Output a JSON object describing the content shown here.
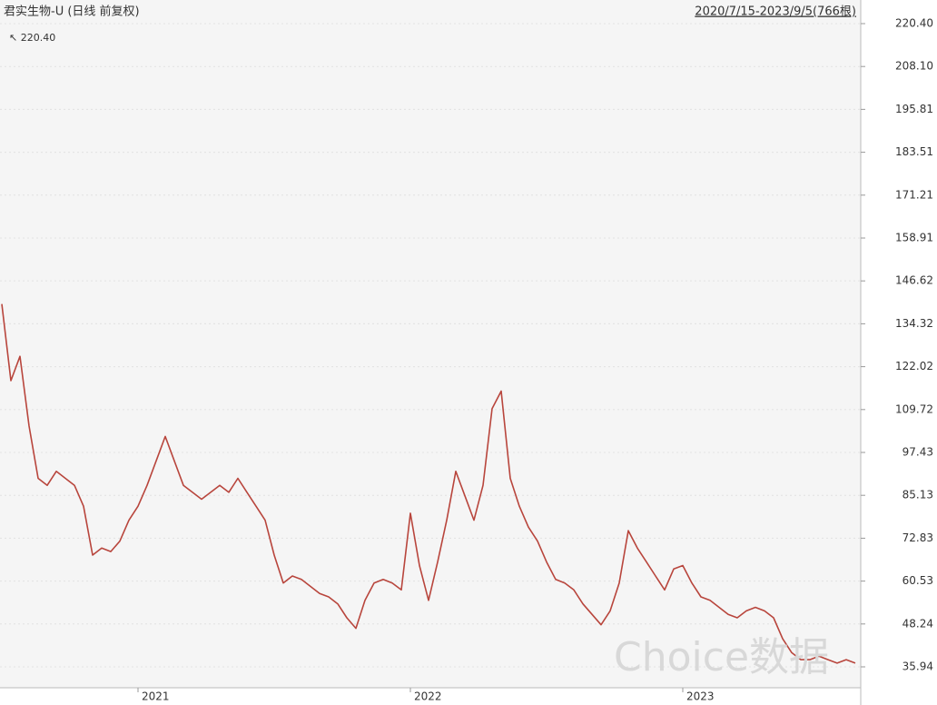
{
  "chart_data": {
    "type": "line",
    "title": "君实生物-U (日线 前复权)",
    "subtitle": "2020/7/15-2023/9/5(766根)",
    "annotation": "↖ 220.40",
    "watermark": "Choice数据",
    "categories": [
      null,
      null,
      null,
      null,
      null,
      null,
      null,
      null,
      null,
      null,
      null,
      null,
      null,
      null,
      null,
      "2021",
      null,
      null,
      null,
      null,
      null,
      null,
      null,
      null,
      null,
      null,
      null,
      null,
      null,
      null,
      null,
      null,
      null,
      null,
      null,
      null,
      null,
      null,
      null,
      null,
      null,
      null,
      null,
      null,
      null,
      "2022",
      null,
      null,
      null,
      null,
      null,
      null,
      null,
      null,
      null,
      null,
      null,
      null,
      null,
      null,
      null,
      null,
      null,
      null,
      null,
      null,
      null,
      null,
      null,
      null,
      null,
      null,
      null,
      null,
      null,
      "2023",
      null,
      null,
      null,
      null,
      null,
      null,
      null,
      null,
      null,
      null,
      null,
      null,
      null,
      null,
      null,
      null,
      null,
      null,
      null
    ],
    "series": [
      {
        "name": "君实生物-U",
        "color": "#b8453c",
        "values": [
          140,
          118,
          125,
          105,
          90,
          88,
          92,
          90,
          88,
          82,
          68,
          70,
          69,
          72,
          78,
          82,
          88,
          95,
          102,
          95,
          88,
          86,
          84,
          86,
          88,
          86,
          90,
          86,
          82,
          78,
          68,
          60,
          62,
          61,
          59,
          57,
          56,
          54,
          50,
          47,
          55,
          60,
          61,
          60,
          58,
          80,
          65,
          55,
          66,
          78,
          92,
          85,
          78,
          88,
          110,
          115,
          90,
          82,
          76,
          72,
          66,
          61,
          60,
          58,
          54,
          51,
          48,
          52,
          60,
          75,
          70,
          66,
          62,
          58,
          64,
          65,
          60,
          56,
          55,
          53,
          51,
          50,
          52,
          53,
          52,
          50,
          44,
          40,
          38,
          38,
          39,
          38,
          37,
          38,
          37
        ]
      }
    ],
    "ylim": [
      29.95,
      227.17
    ],
    "yticks": [
      {
        "value": 220.4,
        "label": "220.40"
      },
      {
        "value": 208.1,
        "label": "208.10"
      },
      195.81,
      183.51,
      171.21,
      158.91,
      146.62,
      134.32,
      122.02,
      109.72,
      97.43,
      85.13,
      72.83,
      60.53,
      48.24,
      35.94
    ],
    "grid": true
  }
}
